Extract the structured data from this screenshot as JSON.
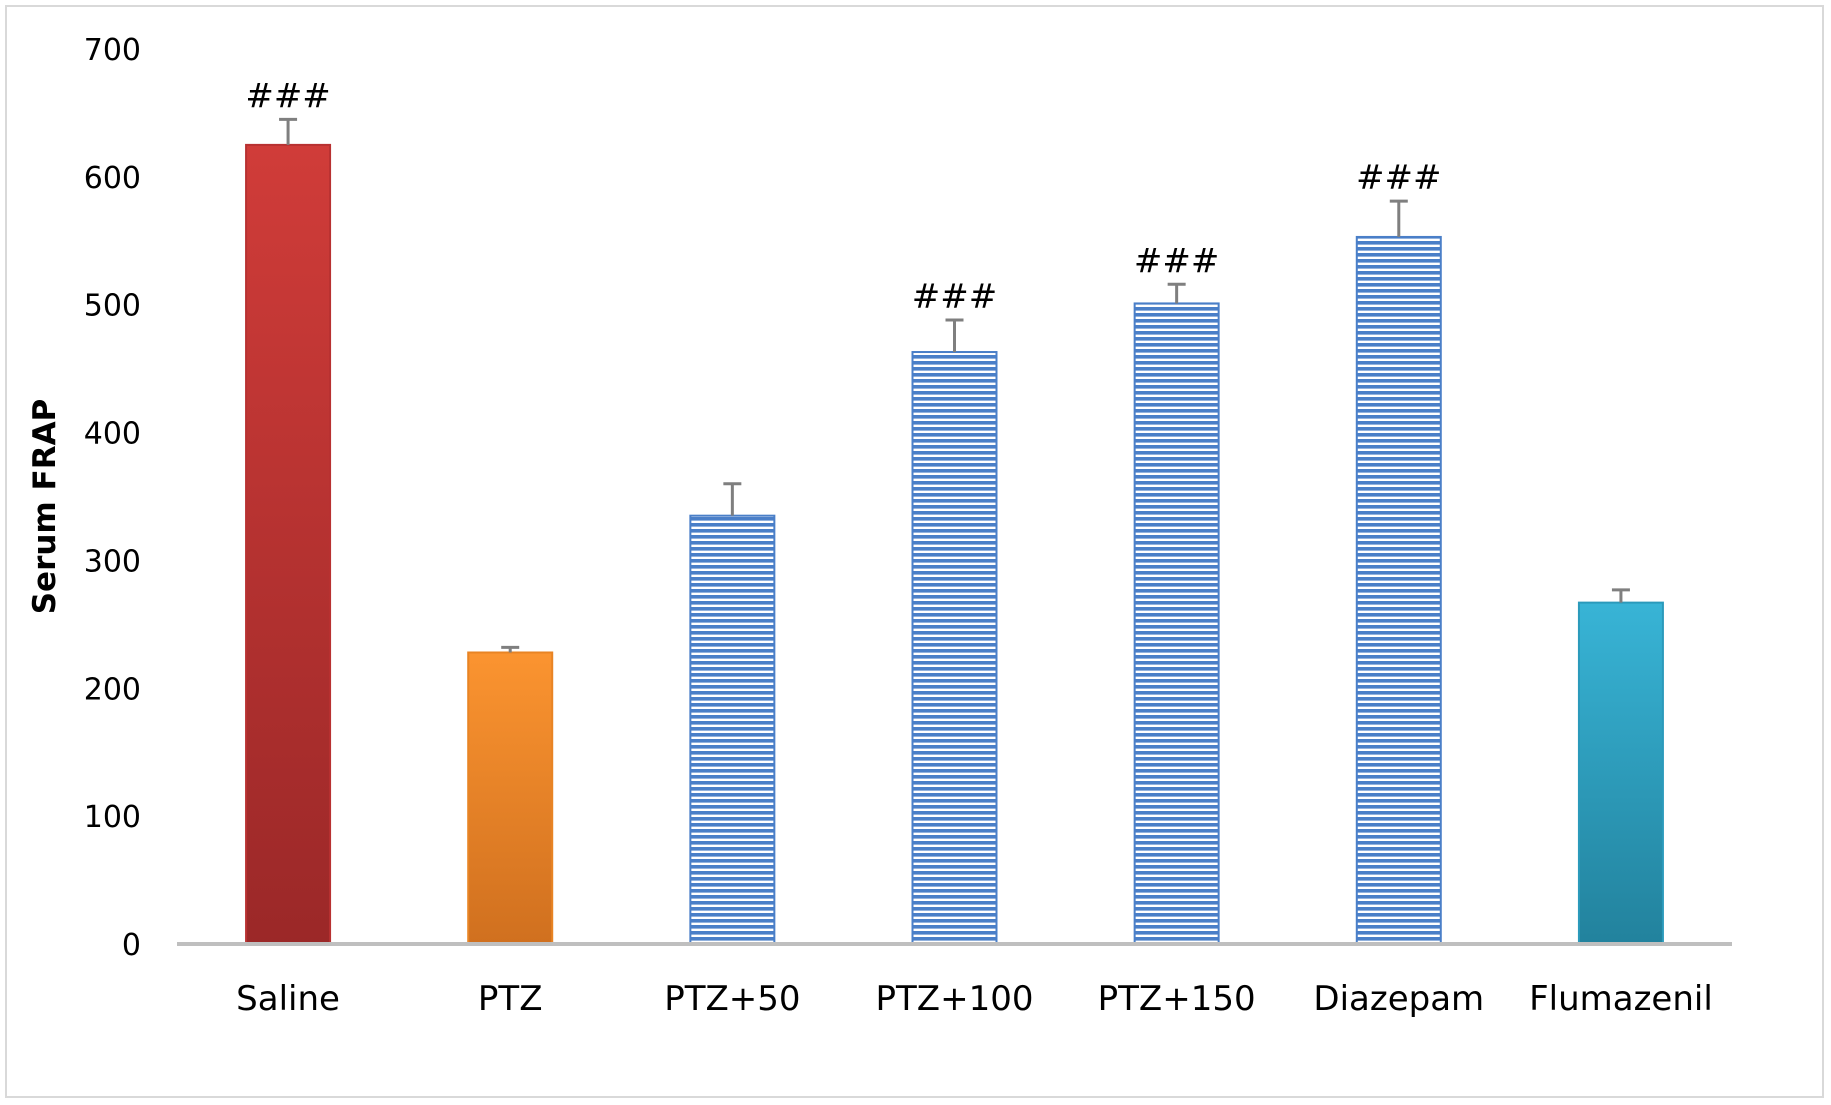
{
  "chart_data": {
    "type": "bar",
    "title": "",
    "xlabel": "",
    "ylabel": "Serum FRAP",
    "ylim": [
      0,
      700
    ],
    "yticks": [
      0,
      100,
      200,
      300,
      400,
      500,
      600,
      700
    ],
    "grid": false,
    "legend": "none",
    "categories": [
      "Saline",
      "PTZ",
      "PTZ+50",
      "PTZ+100",
      "PTZ+150",
      "Diazepam",
      "Flumazenil"
    ],
    "series": [
      {
        "values": [
          625,
          228,
          335,
          463,
          501,
          553,
          267
        ],
        "errors": [
          20,
          4,
          25,
          25,
          15,
          28,
          10
        ],
        "annotations": [
          "###",
          "",
          "",
          "###",
          "###",
          "###",
          ""
        ]
      }
    ],
    "colors": {
      "saline": "#c0392b",
      "ptz": "#f38c28",
      "ptz_doses": "#4a7fc8",
      "flumazenil": "#2ea3c4",
      "axis": "#bfbfbf",
      "error_bar": "#7f7f7f"
    }
  }
}
